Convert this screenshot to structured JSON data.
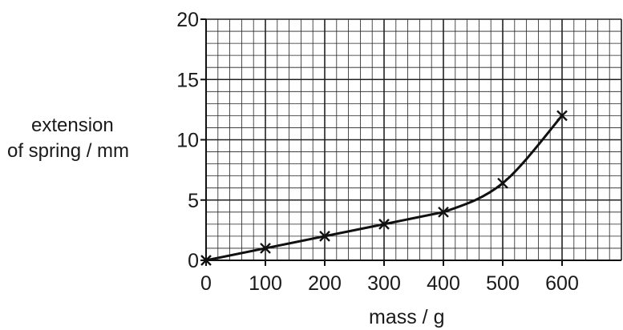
{
  "chart_data": {
    "type": "line",
    "ylabel_lines": [
      "extension",
      "of spring / mm"
    ],
    "xlabel": "mass / g",
    "xlim": [
      0,
      700
    ],
    "ylim": [
      0,
      20
    ],
    "x_ticks": [
      "0",
      "100",
      "200",
      "300",
      "400",
      "500",
      "600"
    ],
    "y_ticks": [
      "0",
      "5",
      "10",
      "15",
      "20"
    ],
    "minor_grid": {
      "x_step": 20,
      "y_step": 1
    },
    "major_grid": {
      "x_step": 100,
      "y_step": 5
    },
    "grid": true,
    "marker": "x",
    "series": [
      {
        "x": [
          0,
          100,
          200,
          300,
          400,
          500,
          600
        ],
        "y": [
          0,
          1,
          2,
          3,
          4,
          6.4,
          12
        ]
      }
    ]
  }
}
